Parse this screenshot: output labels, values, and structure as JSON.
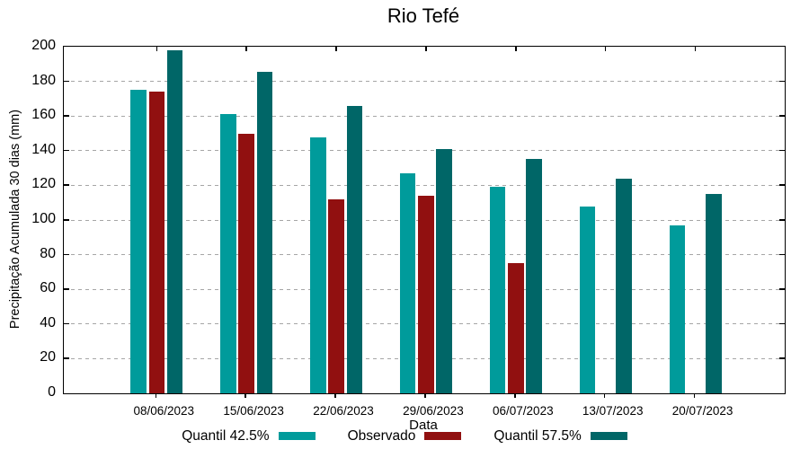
{
  "title": "Rio Tefé",
  "colors": {
    "background": "#ffffff",
    "frame": "#000000",
    "grid": "#a6a6a6",
    "text": "#000000",
    "quantil_425": "#009B9B",
    "observado": "#911010",
    "quantil_575": "#006667"
  },
  "chart_data": {
    "type": "bar",
    "title": "Rio Tefé",
    "xlabel": "Data",
    "ylabel": "Precipitação Acumulada 30 dias (mm)",
    "categories": [
      "08/06/2023",
      "15/06/2023",
      "22/06/2023",
      "29/06/2023",
      "06/07/2023",
      "13/07/2023",
      "20/07/2023"
    ],
    "series": [
      {
        "name": "Quantil 42.5%",
        "color": "#009B9B",
        "values": [
          175,
          161,
          147.5,
          127,
          119,
          108,
          97
        ]
      },
      {
        "name": "Observado",
        "color": "#911010",
        "values": [
          174,
          150,
          112,
          114,
          75,
          null,
          null
        ]
      },
      {
        "name": "Quantil 57.5%",
        "color": "#006667",
        "values": [
          198,
          185.5,
          166,
          141,
          135,
          124,
          115
        ]
      }
    ],
    "ylim": [
      0,
      200
    ],
    "ytick_step": 20,
    "grid": true,
    "gridlines_dashed": true,
    "legend_position": "bottom"
  }
}
